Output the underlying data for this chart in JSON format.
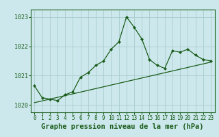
{
  "title": "Graphe pression niveau de la mer (hPa)",
  "background_color": "#cce8ec",
  "grid_color": "#aacccc",
  "line_color": "#1a5c1a",
  "x_labels": [
    "0",
    "1",
    "2",
    "3",
    "4",
    "5",
    "6",
    "7",
    "8",
    "9",
    "10",
    "11",
    "12",
    "13",
    "14",
    "15",
    "16",
    "17",
    "18",
    "19",
    "20",
    "21",
    "22",
    "23"
  ],
  "x_values": [
    0,
    1,
    2,
    3,
    4,
    5,
    6,
    7,
    8,
    9,
    10,
    11,
    12,
    13,
    14,
    15,
    16,
    17,
    18,
    19,
    20,
    21,
    22,
    23
  ],
  "main_line": [
    1020.65,
    1020.25,
    1020.2,
    1020.15,
    1020.35,
    1020.45,
    1020.95,
    1021.1,
    1021.35,
    1021.5,
    1021.9,
    1022.15,
    1023.0,
    1022.65,
    1022.25,
    1021.55,
    1021.35,
    1021.25,
    1021.85,
    1021.8,
    1021.9,
    1021.7,
    1021.55,
    1021.5
  ],
  "trend_line": [
    1020.08,
    1020.14,
    1020.2,
    1020.26,
    1020.32,
    1020.38,
    1020.44,
    1020.5,
    1020.56,
    1020.62,
    1020.68,
    1020.74,
    1020.8,
    1020.86,
    1020.92,
    1020.98,
    1021.04,
    1021.1,
    1021.16,
    1021.22,
    1021.28,
    1021.34,
    1021.4,
    1021.46
  ],
  "ylim": [
    1019.75,
    1023.25
  ],
  "yticks": [
    1020,
    1021,
    1022,
    1023
  ],
  "xlim": [
    -0.5,
    23.5
  ],
  "title_fontsize": 7.5,
  "tick_fontsize": 6.0
}
